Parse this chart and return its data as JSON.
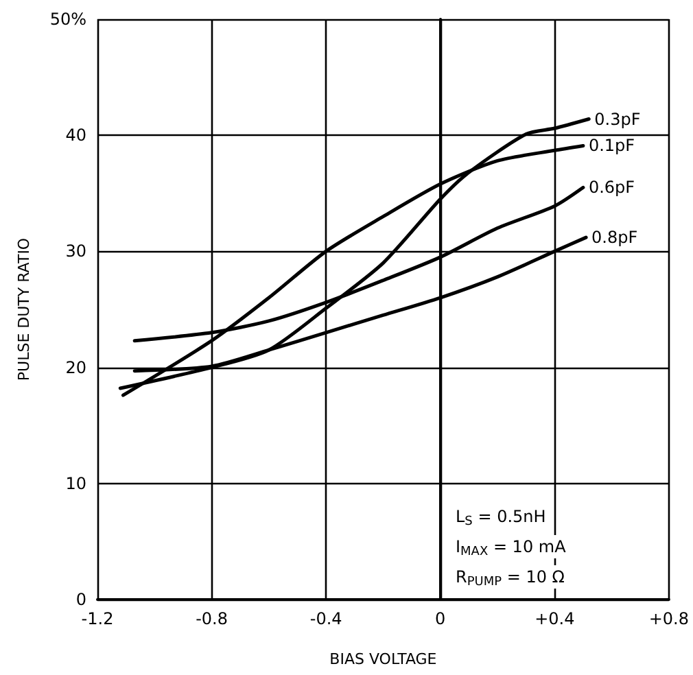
{
  "chart_data": {
    "type": "line",
    "xlabel": "BIAS VOLTAGE",
    "ylabel": "PULSE DUTY RATIO",
    "xlim": [
      -1.2,
      0.8
    ],
    "xticks": [
      -1.2,
      -0.8,
      -0.4,
      0,
      {
        "value": 0.4,
        "label": "+0.4"
      },
      {
        "value": 0.8,
        "label": "+0.8"
      }
    ],
    "ylim": [
      0,
      50
    ],
    "yticks": [
      0,
      10,
      20,
      30,
      40,
      {
        "value": 50,
        "label": "50%"
      }
    ],
    "grid": true,
    "marker": "none",
    "line_style": "solid",
    "legend": false,
    "annotations": [
      "L$_{S}$ = 0.5nH",
      "I$_{MAX}$ = 10 mA",
      "R$_{PUMP}$ = 10 Ω"
    ],
    "series": [
      {
        "name": "0.3pF",
        "color": "#000000",
        "x": [
          -1.12,
          -0.8,
          -0.6,
          -0.4,
          -0.2,
          0,
          0.1,
          0.3,
          0.4,
          0.52
        ],
        "values": [
          18.2,
          20,
          21.5,
          25.1,
          29,
          34.5,
          36.8,
          40.1,
          40.6,
          41.4
        ]
      },
      {
        "name": "0.1pF",
        "color": "#000000",
        "x": [
          -1.11,
          -0.8,
          -0.6,
          -0.4,
          -0.2,
          0,
          0.2,
          0.4,
          0.5
        ],
        "values": [
          17.6,
          22.3,
          26,
          30,
          33,
          35.8,
          37.8,
          38.7,
          39.1
        ]
      },
      {
        "name": "0.6pF",
        "color": "#000000",
        "x": [
          -1.07,
          -0.8,
          -0.6,
          -0.4,
          -0.2,
          0,
          0.2,
          0.4,
          0.5
        ],
        "values": [
          22.3,
          23,
          24,
          25.6,
          27.5,
          29.5,
          32,
          33.9,
          35.5
        ]
      },
      {
        "name": "0.8pF",
        "color": "#000000",
        "x": [
          -1.07,
          -0.8,
          -0.6,
          -0.4,
          -0.2,
          0,
          0.2,
          0.4,
          0.51
        ],
        "values": [
          19.7,
          20.1,
          21.5,
          23,
          24.5,
          26,
          27.8,
          30,
          31.2
        ]
      }
    ]
  }
}
